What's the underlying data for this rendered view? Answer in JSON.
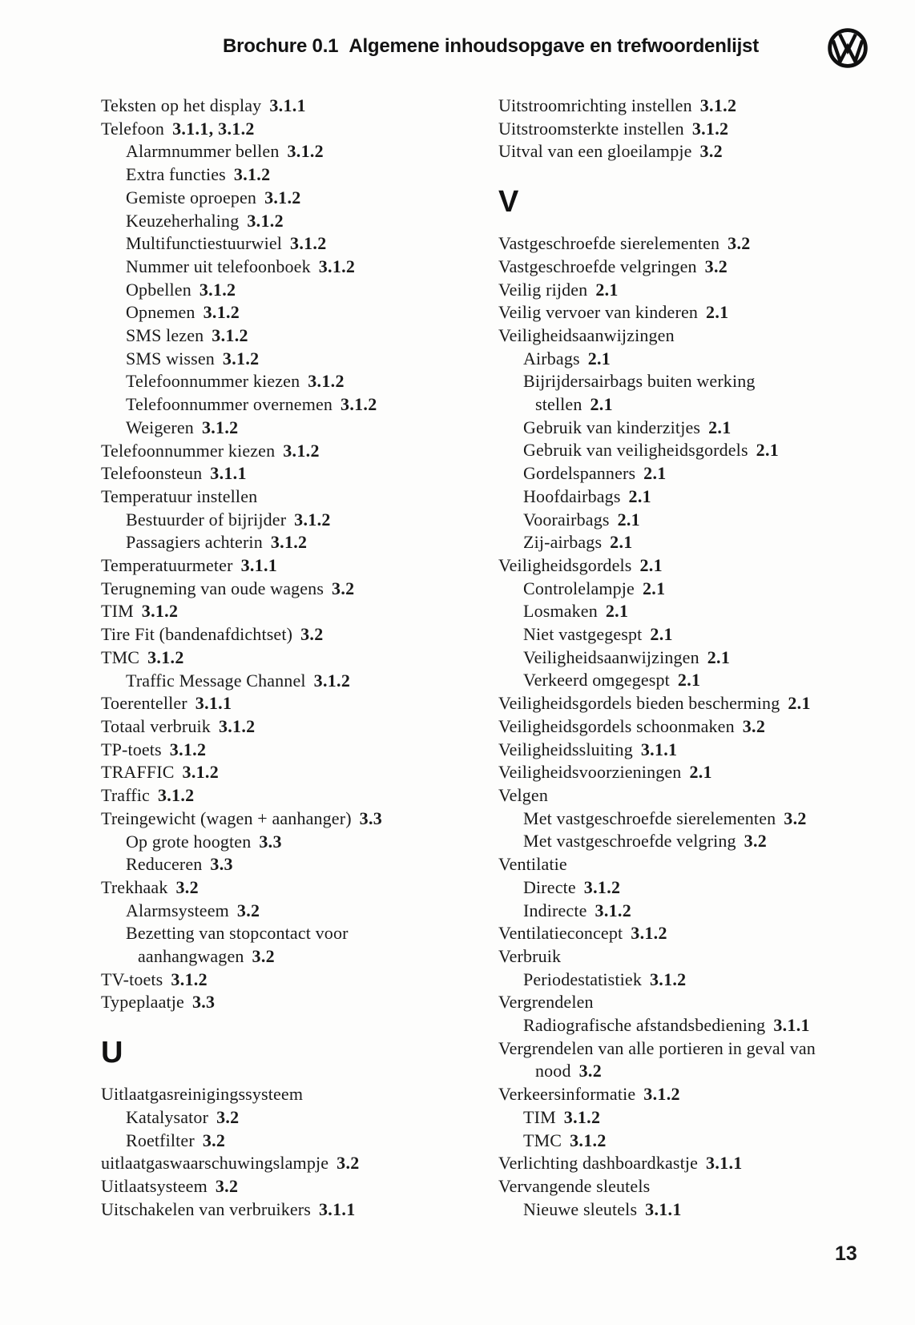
{
  "page": {
    "header": {
      "brochure": "Brochure 0.1",
      "title": "Algemene inhoudsopgave en trefwoordenlijst"
    },
    "logo": "volkswagen-logo",
    "page_number": "13"
  },
  "index": {
    "columns": [
      {
        "items": [
          {
            "text": "Teksten op het display",
            "ref": "3.1.1",
            "indent": 0
          },
          {
            "text": "Telefoon",
            "ref": "3.1.1, 3.1.2",
            "indent": 0
          },
          {
            "text": "Alarmnummer bellen",
            "ref": "3.1.2",
            "indent": 1
          },
          {
            "text": "Extra functies",
            "ref": "3.1.2",
            "indent": 1
          },
          {
            "text": "Gemiste oproepen",
            "ref": "3.1.2",
            "indent": 1
          },
          {
            "text": "Keuzeherhaling",
            "ref": "3.1.2",
            "indent": 1
          },
          {
            "text": "Multifunctiestuurwiel",
            "ref": "3.1.2",
            "indent": 1
          },
          {
            "text": "Nummer uit telefoonboek",
            "ref": "3.1.2",
            "indent": 1
          },
          {
            "text": "Opbellen",
            "ref": "3.1.2",
            "indent": 1
          },
          {
            "text": "Opnemen",
            "ref": "3.1.2",
            "indent": 1
          },
          {
            "text": "SMS lezen",
            "ref": "3.1.2",
            "indent": 1
          },
          {
            "text": "SMS wissen",
            "ref": "3.1.2",
            "indent": 1
          },
          {
            "text": "Telefoonnummer kiezen",
            "ref": "3.1.2",
            "indent": 1
          },
          {
            "text": "Telefoonnummer overnemen",
            "ref": "3.1.2",
            "indent": 1
          },
          {
            "text": "Weigeren",
            "ref": "3.1.2",
            "indent": 1
          },
          {
            "text": "Telefoonnummer kiezen",
            "ref": "3.1.2",
            "indent": 0
          },
          {
            "text": "Telefoonsteun",
            "ref": "3.1.1",
            "indent": 0
          },
          {
            "text": "Temperatuur instellen",
            "indent": 0
          },
          {
            "text": "Bestuurder of bijrijder",
            "ref": "3.1.2",
            "indent": 1
          },
          {
            "text": "Passagiers achterin",
            "ref": "3.1.2",
            "indent": 1
          },
          {
            "text": "Temperatuurmeter",
            "ref": "3.1.1",
            "indent": 0
          },
          {
            "text": "Terugneming van oude wagens",
            "ref": "3.2",
            "indent": 0
          },
          {
            "text": "TIM",
            "ref": "3.1.2",
            "indent": 0
          },
          {
            "text": "Tire Fit (bandenafdichtset)",
            "ref": "3.2",
            "indent": 0
          },
          {
            "text": "TMC",
            "ref": "3.1.2",
            "indent": 0
          },
          {
            "text": "Traffic Message Channel",
            "ref": "3.1.2",
            "indent": 1
          },
          {
            "text": "Toerenteller",
            "ref": "3.1.1",
            "indent": 0
          },
          {
            "text": "Totaal verbruik",
            "ref": "3.1.2",
            "indent": 0
          },
          {
            "text": "TP-toets",
            "ref": "3.1.2",
            "indent": 0
          },
          {
            "text": "TRAFFIC",
            "ref": "3.1.2",
            "indent": 0
          },
          {
            "text": "Traffic",
            "ref": "3.1.2",
            "indent": 0
          },
          {
            "text": "Treingewicht (wagen + aanhanger)",
            "ref": "3.3",
            "indent": 0
          },
          {
            "text": "Op grote hoogten",
            "ref": "3.3",
            "indent": 1
          },
          {
            "text": "Reduceren",
            "ref": "3.3",
            "indent": 1
          },
          {
            "text": "Trekhaak",
            "ref": "3.2",
            "indent": 0
          },
          {
            "text": "Alarmsysteem",
            "ref": "3.2",
            "indent": 1
          },
          {
            "text": "Bezetting van stopcontact voor",
            "text2": "aanhangwagen",
            "ref": "3.2",
            "indent": 1
          },
          {
            "text": "TV-toets",
            "ref": "3.1.2",
            "indent": 0
          },
          {
            "text": "Typeplaatje",
            "ref": "3.3",
            "indent": 0
          },
          {
            "letter": "U"
          },
          {
            "text": "Uitlaatgasreinigingssysteem",
            "indent": 0
          },
          {
            "text": "Katalysator",
            "ref": "3.2",
            "indent": 1
          },
          {
            "text": "Roetfilter",
            "ref": "3.2",
            "indent": 1
          },
          {
            "text": "uitlaatgaswaarschuwingslampje",
            "ref": "3.2",
            "indent": 0
          },
          {
            "text": "Uitlaatsysteem",
            "ref": "3.2",
            "indent": 0
          },
          {
            "text": "Uitschakelen van verbruikers",
            "ref": "3.1.1",
            "indent": 0
          }
        ]
      },
      {
        "items": [
          {
            "text": "Uitstroomrichting instellen",
            "ref": "3.1.2",
            "indent": 0
          },
          {
            "text": "Uitstroomsterkte instellen",
            "ref": "3.1.2",
            "indent": 0
          },
          {
            "text": "Uitval van een gloeilampje",
            "ref": "3.2",
            "indent": 0
          },
          {
            "letter": "V"
          },
          {
            "text": "Vastgeschroefde sierelementen",
            "ref": "3.2",
            "indent": 0
          },
          {
            "text": "Vastgeschroefde velgringen",
            "ref": "3.2",
            "indent": 0
          },
          {
            "text": "Veilig rijden",
            "ref": "2.1",
            "indent": 0
          },
          {
            "text": "Veilig vervoer van kinderen",
            "ref": "2.1",
            "indent": 0
          },
          {
            "text": "Veiligheidsaanwijzingen",
            "indent": 0
          },
          {
            "text": "Airbags",
            "ref": "2.1",
            "indent": 1
          },
          {
            "text": "Bijrijdersairbags buiten werking",
            "text2": "stellen",
            "ref": "2.1",
            "indent": 1
          },
          {
            "text": "Gebruik van kinderzitjes",
            "ref": "2.1",
            "indent": 1
          },
          {
            "text": "Gebruik van veiligheidsgordels",
            "ref": "2.1",
            "indent": 1
          },
          {
            "text": "Gordelspanners",
            "ref": "2.1",
            "indent": 1
          },
          {
            "text": "Hoofdairbags",
            "ref": "2.1",
            "indent": 1
          },
          {
            "text": "Voorairbags",
            "ref": "2.1",
            "indent": 1
          },
          {
            "text": "Zij-airbags",
            "ref": "2.1",
            "indent": 1
          },
          {
            "text": "Veiligheidsgordels",
            "ref": "2.1",
            "indent": 0
          },
          {
            "text": "Controlelampje",
            "ref": "2.1",
            "indent": 1
          },
          {
            "text": "Losmaken",
            "ref": "2.1",
            "indent": 1
          },
          {
            "text": "Niet vastgegespt",
            "ref": "2.1",
            "indent": 1
          },
          {
            "text": "Veiligheidsaanwijzingen",
            "ref": "2.1",
            "indent": 1
          },
          {
            "text": "Verkeerd omgegespt",
            "ref": "2.1",
            "indent": 1
          },
          {
            "text": "Veiligheidsgordels bieden bescherming",
            "ref": "2.1",
            "indent": 0
          },
          {
            "text": "Veiligheidsgordels schoonmaken",
            "ref": "3.2",
            "indent": 0
          },
          {
            "text": "Veiligheidssluiting",
            "ref": "3.1.1",
            "indent": 0
          },
          {
            "text": "Veiligheidsvoorzieningen",
            "ref": "2.1",
            "indent": 0
          },
          {
            "text": "Velgen",
            "indent": 0
          },
          {
            "text": "Met vastgeschroefde sierelementen",
            "ref": "3.2",
            "indent": 1
          },
          {
            "text": "Met vastgeschroefde velgring",
            "ref": "3.2",
            "indent": 1
          },
          {
            "text": "Ventilatie",
            "indent": 0
          },
          {
            "text": "Directe",
            "ref": "3.1.2",
            "indent": 1
          },
          {
            "text": "Indirecte",
            "ref": "3.1.2",
            "indent": 1
          },
          {
            "text": "Ventilatieconcept",
            "ref": "3.1.2",
            "indent": 0
          },
          {
            "text": "Verbruik",
            "indent": 0
          },
          {
            "text": "Periodestatistiek",
            "ref": "3.1.2",
            "indent": 1
          },
          {
            "text": "Vergrendelen",
            "indent": 0
          },
          {
            "text": "Radiografische afstandsbediening",
            "ref": "3.1.1",
            "indent": 1
          },
          {
            "text": "Vergrendelen van alle portieren in geval van",
            "text2": "nood",
            "ref": "3.2",
            "indent": 0
          },
          {
            "text": "Verkeersinformatie",
            "ref": "3.1.2",
            "indent": 0
          },
          {
            "text": "TIM",
            "ref": "3.1.2",
            "indent": 1
          },
          {
            "text": "TMC",
            "ref": "3.1.2",
            "indent": 1
          },
          {
            "text": "Verlichting dashboardkastje",
            "ref": "3.1.1",
            "indent": 0
          },
          {
            "text": "Vervangende sleutels",
            "indent": 0
          },
          {
            "text": "Nieuwe sleutels",
            "ref": "3.1.1",
            "indent": 1
          }
        ]
      }
    ]
  }
}
